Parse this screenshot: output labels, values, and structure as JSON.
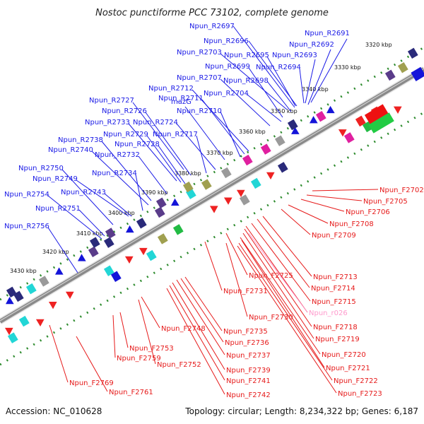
{
  "title": "Nostoc punctiforme PCC 73102, complete genome",
  "footer": {
    "accession": "Accession: NC_010628",
    "topology": "Topology: circular; Length: 8,234,322 bp; Genes: 6,187"
  },
  "colors": {
    "reverse_label": "#1a1ae6",
    "forward_label": "#e61a1a",
    "rna_label": "#ff99cc",
    "backbone": "#8a8a8a",
    "scale_dots": "#2e8b2e"
  },
  "ticks": [
    "3320 kbp",
    "3330 kbp",
    "3340 kbp",
    "3350 kbp",
    "3360 kbp",
    "3370 kbp",
    "3380 kbp",
    "3390 kbp",
    "3400 kbp",
    "3410 kbp",
    "3420 kbp",
    "3430 kbp"
  ],
  "reverse_labels": [
    "Npun_R2697",
    "Npun_R2691",
    "Npun_R2696",
    "Npun_R2692",
    "Npun_R2703",
    "Npun_R2695",
    "Npun_R2693",
    "Npun_R2699",
    "Npun_R2694",
    "Npun_R2707",
    "Npun_R2698",
    "Npun_R2712",
    "Npun_R2704",
    "Npun_R2711",
    "Npun_R2727",
    "Npun_R2710",
    "Npun_R2726",
    "mazG",
    "Npun_R2733",
    "Npun_R2724",
    "Npun_R2729",
    "Npun_R2717",
    "Npun_R2738",
    "Npun_R2728",
    "Npun_R2740",
    "Npun_R2732",
    "Npun_R2750",
    "Npun_R2734",
    "Npun_R2749",
    "Npun_R2754",
    "Npun_R2743",
    "Npun_R2751",
    "Npun_R2756"
  ],
  "forward_labels": [
    "Npun_F2702",
    "Npun_F2705",
    "Npun_F2706",
    "Npun_F2708",
    "Npun_F2709",
    "Npun_F2725",
    "Npun_F2713",
    "Npun_F2714",
    "Npun_F2731",
    "Npun_F2715",
    "Npun_F2730",
    "Npun_r026",
    "Npun_F2748",
    "Npun_F2718",
    "Npun_F2735",
    "Npun_F2719",
    "Npun_F2736",
    "Npun_F2753",
    "Npun_F2720",
    "Npun_F2737",
    "Npun_F2759",
    "Npun_F2752",
    "Npun_F2721",
    "Npun_F2739",
    "Npun_F2722",
    "Npun_F2741",
    "Npun_F2769",
    "Npun_F2723",
    "Npun_F2742",
    "Npun_F2761"
  ]
}
